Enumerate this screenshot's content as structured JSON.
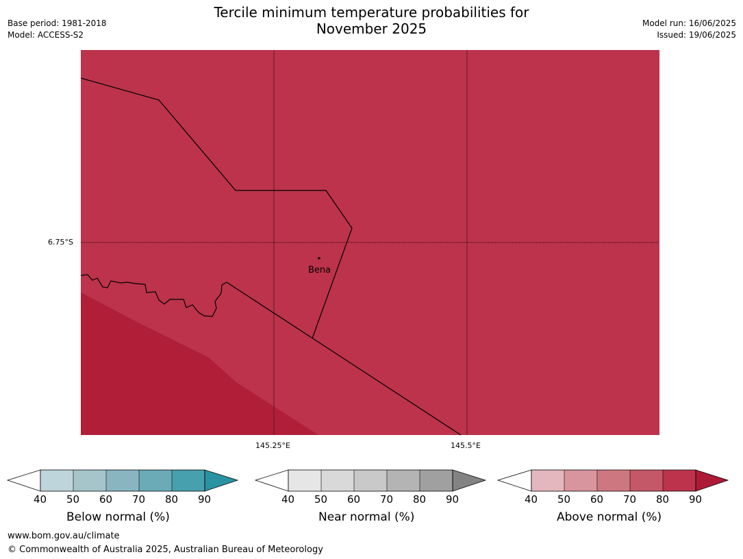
{
  "header": {
    "title_line1": "Tercile minimum temperature probabilities for",
    "title_line2": "November 2025",
    "base_period": "Base period: 1981-2018",
    "model": "Model: ACCESS-S2",
    "model_run": "Model run: 16/06/2025",
    "issued": "Issued: 19/06/2025"
  },
  "map": {
    "lat_label": "6.75°S",
    "lon_labels": [
      "145.25°E",
      "145.5°E"
    ],
    "place": "Bena",
    "colors": {
      "fill": "#bc334b",
      "dark_fill": "#b01e38",
      "border": "#000000"
    }
  },
  "colorbars": [
    {
      "title": "Below normal (%)",
      "ticks": [
        "40",
        "50",
        "60",
        "70",
        "80",
        "90"
      ],
      "colors": [
        "#ffffff",
        "#bfd5dc",
        "#a6c5cb",
        "#89b5c1",
        "#6babb8",
        "#47a0ae",
        "#2a93a3"
      ]
    },
    {
      "title": "Near normal (%)",
      "ticks": [
        "40",
        "50",
        "60",
        "70",
        "80",
        "90"
      ],
      "colors": [
        "#ffffff",
        "#e6e6e6",
        "#d9d9d9",
        "#c9c9c9",
        "#b4b4b4",
        "#a0a0a0",
        "#838383"
      ]
    },
    {
      "title": "Above normal (%)",
      "ticks": [
        "40",
        "50",
        "60",
        "70",
        "80",
        "90"
      ],
      "colors": [
        "#ffffff",
        "#e3b7bd",
        "#d8959d",
        "#cd7880",
        "#c45868",
        "#bc334b",
        "#ad1a36"
      ]
    }
  ],
  "footer": {
    "url": "www.bom.gov.au/climate",
    "copyright": "© Commonwealth of Australia 2025, Australian Bureau of Meteorology"
  }
}
